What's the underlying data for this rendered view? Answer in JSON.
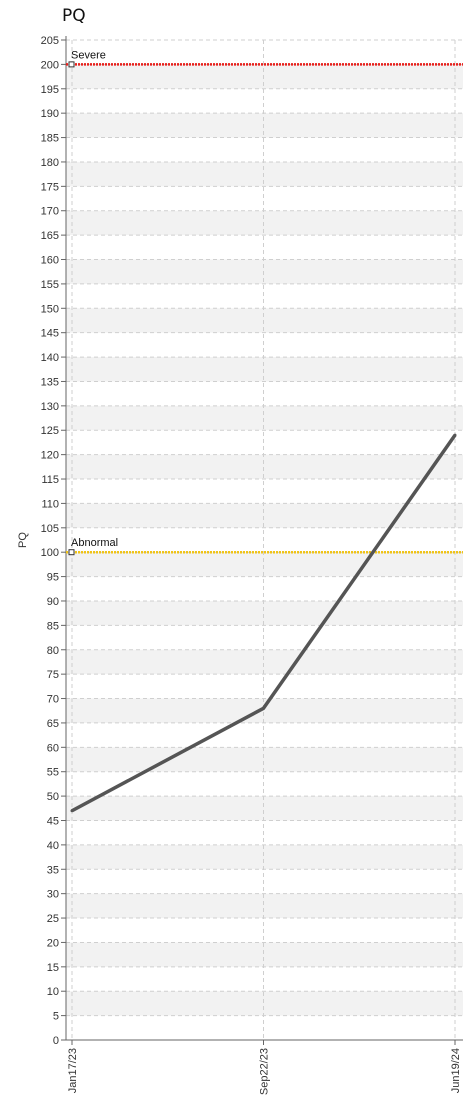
{
  "chart_data": {
    "type": "line",
    "title": "PQ",
    "ylabel": "PQ",
    "xlabel": "",
    "ylim": [
      0,
      205
    ],
    "ytick_step": 5,
    "grid": true,
    "x": [
      "Jan17/23",
      "Sep22/23",
      "Jun19/24"
    ],
    "series": [
      {
        "values": [
          47,
          68,
          124
        ],
        "color": "#555555"
      }
    ],
    "reference_lines": [
      {
        "label": "Severe",
        "value": 200,
        "color": "#e8201c"
      },
      {
        "label": "Abnormal",
        "value": 100,
        "color": "#f0c419"
      }
    ]
  }
}
